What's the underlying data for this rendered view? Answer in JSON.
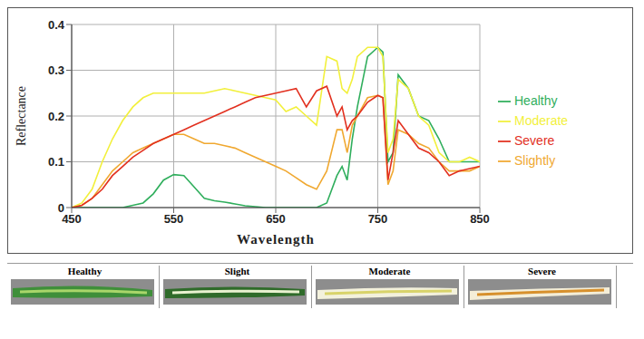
{
  "chart_data": {
    "type": "line",
    "x_label": "Wavelength",
    "y_label": "Reflectance",
    "x": [
      450,
      460,
      470,
      480,
      490,
      500,
      510,
      520,
      530,
      540,
      550,
      560,
      570,
      580,
      590,
      600,
      610,
      620,
      630,
      640,
      650,
      660,
      670,
      680,
      690,
      700,
      710,
      715,
      720,
      725,
      730,
      740,
      750,
      755,
      760,
      765,
      770,
      780,
      790,
      800,
      810,
      820,
      830,
      840,
      850
    ],
    "xlim": [
      450,
      850
    ],
    "xticks": [
      450,
      550,
      650,
      750,
      850
    ],
    "ylim": [
      0,
      0.4
    ],
    "yticks": [
      0,
      0.1,
      0.2,
      0.3,
      0.4
    ],
    "grid": true,
    "legend": "right",
    "series": [
      {
        "name": "Healthy",
        "color": "#2fae5c",
        "values": [
          0,
          0,
          0,
          0,
          0,
          0,
          0.005,
          0.01,
          0.03,
          0.06,
          0.072,
          0.07,
          0.045,
          0.02,
          0.015,
          0.012,
          0.008,
          0.004,
          0.002,
          0,
          0,
          0,
          0,
          0,
          0,
          0.01,
          0.07,
          0.09,
          0.06,
          0.15,
          0.22,
          0.33,
          0.35,
          0.34,
          0.1,
          0.12,
          0.29,
          0.26,
          0.2,
          0.19,
          0.15,
          0.1,
          0.1,
          0.1,
          0.1
        ]
      },
      {
        "name": "Slightly",
        "color": "#f0a830",
        "values": [
          0,
          0.005,
          0.02,
          0.05,
          0.08,
          0.1,
          0.12,
          0.13,
          0.14,
          0.15,
          0.16,
          0.16,
          0.15,
          0.14,
          0.14,
          0.135,
          0.13,
          0.12,
          0.11,
          0.1,
          0.09,
          0.08,
          0.065,
          0.05,
          0.04,
          0.08,
          0.17,
          0.17,
          0.12,
          0.18,
          0.2,
          0.24,
          0.245,
          0.24,
          0.05,
          0.08,
          0.17,
          0.16,
          0.14,
          0.13,
          0.1,
          0.08,
          0.08,
          0.08,
          0.09
        ]
      },
      {
        "name": "Moderate",
        "color": "#f2f03c",
        "values": [
          0,
          0.01,
          0.04,
          0.1,
          0.15,
          0.19,
          0.22,
          0.24,
          0.25,
          0.25,
          0.25,
          0.25,
          0.25,
          0.25,
          0.255,
          0.26,
          0.255,
          0.25,
          0.245,
          0.24,
          0.235,
          0.21,
          0.22,
          0.2,
          0.18,
          0.33,
          0.32,
          0.26,
          0.25,
          0.28,
          0.33,
          0.35,
          0.35,
          0.33,
          0.12,
          0.15,
          0.28,
          0.26,
          0.2,
          0.18,
          0.12,
          0.1,
          0.1,
          0.11,
          0.1
        ]
      },
      {
        "name": "Severe",
        "color": "#e2301f",
        "values": [
          0,
          0.005,
          0.02,
          0.04,
          0.07,
          0.09,
          0.11,
          0.125,
          0.14,
          0.15,
          0.16,
          0.17,
          0.18,
          0.19,
          0.2,
          0.21,
          0.22,
          0.23,
          0.24,
          0.245,
          0.25,
          0.255,
          0.26,
          0.22,
          0.255,
          0.265,
          0.2,
          0.22,
          0.17,
          0.19,
          0.2,
          0.23,
          0.245,
          0.24,
          0.06,
          0.12,
          0.19,
          0.16,
          0.13,
          0.12,
          0.1,
          0.07,
          0.08,
          0.085,
          0.09
        ]
      }
    ]
  },
  "panels": [
    "Healthy",
    "Slight",
    "Moderate",
    "Severe"
  ]
}
